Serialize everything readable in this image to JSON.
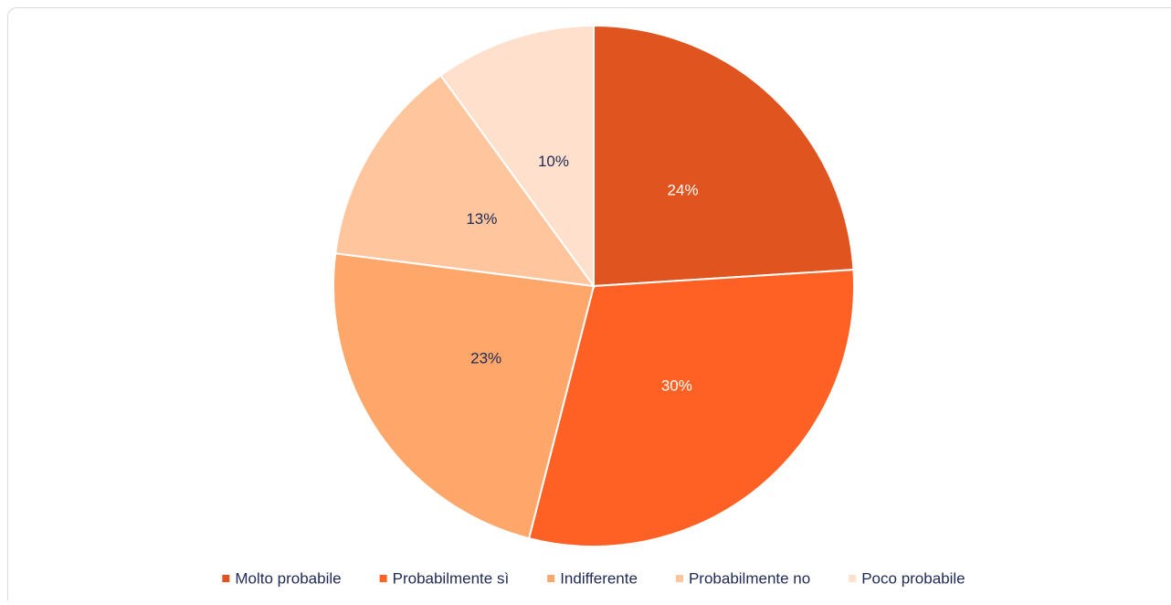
{
  "chart_data": {
    "type": "pie",
    "categories": [
      "Molto probabile",
      "Probabilmente sì",
      "Indifferente",
      "Probabilmente no",
      "Poco probabile"
    ],
    "values": [
      24,
      30,
      23,
      13,
      10
    ],
    "value_labels": [
      "24%",
      "30%",
      "23%",
      "13%",
      "10%"
    ],
    "colors": [
      "#e05420",
      "#ff6124",
      "#ffa76b",
      "#ffc69e",
      "#ffe0cd"
    ],
    "legend": "bottom"
  }
}
